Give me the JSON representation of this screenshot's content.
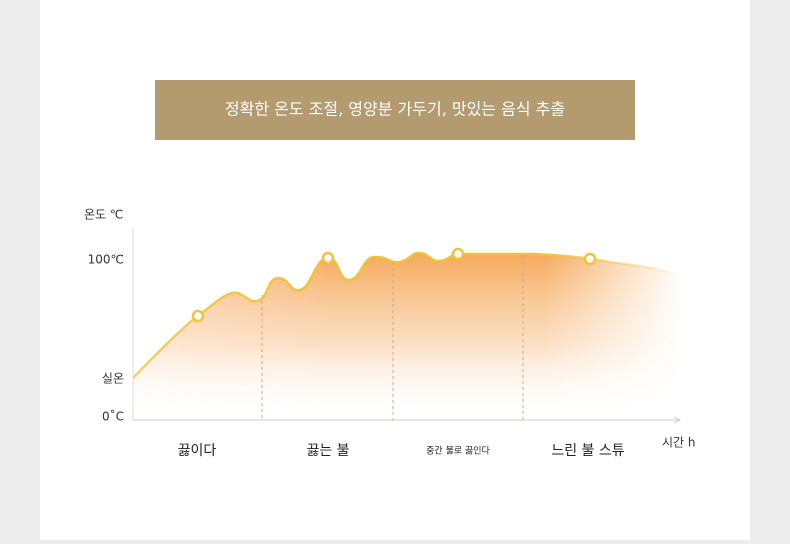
{
  "banner": {
    "title": "정확한 온도 조절, 영양분 가두기, 맛있는 음식 추출"
  },
  "axes": {
    "y_title": "온도 ℃",
    "x_title": "시간 h",
    "y_labels": [
      "100℃",
      "실온",
      "0˚C"
    ]
  },
  "phases": [
    "끓이다",
    "끓는 불",
    "중간 불로 끓인다",
    "느린 불 스튜"
  ]
}
